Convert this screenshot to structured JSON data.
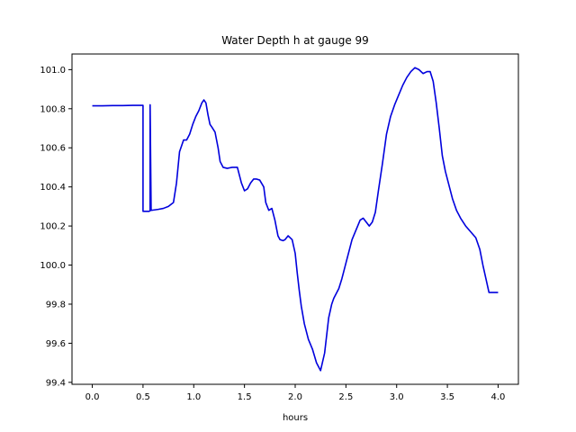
{
  "chart_data": {
    "type": "line",
    "title": "Water Depth h at gauge 99",
    "xlabel": "hours",
    "ylabel": "",
    "xlim": [
      -0.2,
      4.2
    ],
    "ylim": [
      99.39,
      101.08
    ],
    "xticks": [
      0.0,
      0.5,
      1.0,
      1.5,
      2.0,
      2.5,
      3.0,
      3.5,
      4.0
    ],
    "xtick_labels": [
      "0.0",
      "0.5",
      "1.0",
      "1.5",
      "2.0",
      "2.5",
      "3.0",
      "3.5",
      "4.0"
    ],
    "yticks": [
      99.4,
      99.6,
      99.8,
      100.0,
      100.2,
      100.4,
      100.6,
      100.8,
      101.0
    ],
    "ytick_labels": [
      "99.4",
      "99.6",
      "99.8",
      "100.0",
      "100.2",
      "100.4",
      "100.6",
      "100.8",
      "101.0"
    ],
    "grid": false,
    "series": [
      {
        "name": "",
        "color": "#0000dd",
        "x": [
          0.0,
          0.1,
          0.2,
          0.3,
          0.4,
          0.49,
          0.5,
          0.5,
          0.56,
          0.57,
          0.57,
          0.58,
          0.65,
          0.7,
          0.75,
          0.8,
          0.83,
          0.86,
          0.9,
          0.93,
          0.96,
          0.99,
          1.02,
          1.05,
          1.08,
          1.1,
          1.12,
          1.14,
          1.16,
          1.18,
          1.21,
          1.24,
          1.26,
          1.29,
          1.33,
          1.38,
          1.43,
          1.47,
          1.5,
          1.53,
          1.56,
          1.59,
          1.62,
          1.65,
          1.69,
          1.71,
          1.74,
          1.77,
          1.8,
          1.83,
          1.85,
          1.88,
          1.9,
          1.93,
          1.97,
          2.0,
          2.02,
          2.04,
          2.06,
          2.09,
          2.13,
          2.17,
          2.21,
          2.25,
          2.29,
          2.33,
          2.36,
          2.38,
          2.4,
          2.43,
          2.46,
          2.5,
          2.53,
          2.56,
          2.6,
          2.64,
          2.67,
          2.7,
          2.73,
          2.76,
          2.79,
          2.82,
          2.86,
          2.9,
          2.94,
          2.98,
          3.02,
          3.06,
          3.1,
          3.14,
          3.18,
          3.22,
          3.26,
          3.3,
          3.33,
          3.36,
          3.39,
          3.42,
          3.45,
          3.48,
          3.51,
          3.55,
          3.59,
          3.63,
          3.68,
          3.73,
          3.78,
          3.82,
          3.85,
          3.88,
          3.91,
          3.94,
          3.97,
          4.0
        ],
        "y": [
          100.815,
          100.815,
          100.816,
          100.816,
          100.817,
          100.817,
          100.817,
          100.275,
          100.275,
          100.278,
          100.82,
          100.28,
          100.285,
          100.29,
          100.3,
          100.32,
          100.42,
          100.58,
          100.64,
          100.64,
          100.67,
          100.72,
          100.76,
          100.79,
          100.83,
          100.845,
          100.83,
          100.77,
          100.72,
          100.705,
          100.68,
          100.6,
          100.53,
          100.5,
          100.495,
          100.5,
          100.5,
          100.42,
          100.38,
          100.39,
          100.42,
          100.44,
          100.44,
          100.435,
          100.4,
          100.32,
          100.28,
          100.29,
          100.23,
          100.15,
          100.13,
          100.125,
          100.13,
          100.15,
          100.13,
          100.06,
          99.96,
          99.87,
          99.79,
          99.7,
          99.62,
          99.57,
          99.5,
          99.46,
          99.55,
          99.73,
          99.8,
          99.83,
          99.85,
          99.88,
          99.93,
          100.01,
          100.07,
          100.13,
          100.18,
          100.23,
          100.24,
          100.22,
          100.2,
          100.22,
          100.27,
          100.38,
          100.52,
          100.67,
          100.76,
          100.82,
          100.87,
          100.92,
          100.96,
          100.99,
          101.01,
          101.0,
          100.98,
          100.99,
          100.99,
          100.94,
          100.83,
          100.7,
          100.56,
          100.48,
          100.42,
          100.34,
          100.28,
          100.24,
          100.2,
          100.17,
          100.14,
          100.08,
          100.0,
          99.93,
          99.86,
          99.86,
          99.86,
          99.86
        ]
      }
    ]
  }
}
